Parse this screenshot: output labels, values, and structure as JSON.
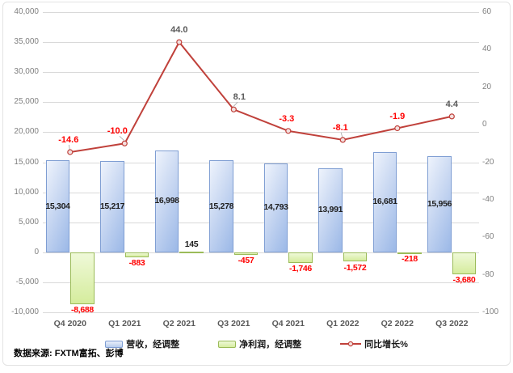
{
  "chart_data": {
    "type": "combo",
    "categories": [
      "Q4 2020",
      "Q1 2021",
      "Q2 2021",
      "Q3 2021",
      "Q4 2021",
      "Q1 2022",
      "Q2 2022",
      "Q3 2022"
    ],
    "series": [
      {
        "name": "营收，经调整",
        "type": "bar",
        "axis": "left",
        "values": [
          15304,
          15217,
          16998,
          15278,
          14793,
          13991,
          16681,
          15956
        ],
        "labels": [
          "15,304",
          "15,217",
          "16,998",
          "15,278",
          "14,793",
          "13,991",
          "16,681",
          "15,956"
        ]
      },
      {
        "name": "净利润，经调整",
        "type": "bar",
        "axis": "left",
        "values": [
          -8688,
          -883,
          145,
          -457,
          -1746,
          -1572,
          -218,
          -3680
        ],
        "labels": [
          "-8,688",
          "-883",
          "145",
          "-457",
          "-1,746",
          "-1,572",
          "-218",
          "-3,680"
        ]
      },
      {
        "name": "同比增长%",
        "type": "line",
        "axis": "right",
        "values": [
          -14.6,
          -10.0,
          44.0,
          8.1,
          -3.3,
          -8.1,
          -1.9,
          4.4
        ],
        "labels": [
          "-14.6",
          "-10.0",
          "44.0",
          "8.1",
          "-3.3",
          "-8.1",
          "-1.9",
          "4.4"
        ],
        "label_dx": [
          -2,
          -9,
          0,
          7,
          -2,
          -3,
          0,
          0
        ],
        "leader_points": [
          0,
          1,
          3,
          5
        ]
      }
    ],
    "left_axis": {
      "min": -10000,
      "max": 40000,
      "step": 5000,
      "tick_labels": [
        "40,000",
        "35,000",
        "30,000",
        "25,000",
        "20,000",
        "15,000",
        "10,000",
        "5,000",
        "0",
        "-5,000",
        "-10,000"
      ]
    },
    "right_axis": {
      "min": -100,
      "max": 60,
      "step": 20,
      "tick_labels": [
        "60",
        "40",
        "20",
        "0",
        "-20",
        "-40",
        "-60",
        "-80",
        "-100"
      ]
    },
    "grid": true,
    "legend_position": "bottom",
    "title": "",
    "xlabel": "",
    "ylabel": ""
  },
  "legend": {
    "items": [
      {
        "label": "营收，经调整",
        "swatch": "bar-blue"
      },
      {
        "label": "净利润，经调整",
        "swatch": "bar-green"
      },
      {
        "label": "同比增长%",
        "swatch": "line-red"
      }
    ]
  },
  "source_note": "数据来源: FXTM富拓、彭博",
  "colors": {
    "line": "#c0413b",
    "marker_fill": "#f3e0df",
    "negative_label": "#ff0000",
    "positive_line_label": "#595959",
    "bar_label": "#1f1f1f",
    "gridline": "#d9d9d9",
    "axis_text": "#808080",
    "x_axis_text": "#595959",
    "frame_border": "#e3e3e3",
    "leader_line": "#a6a6a6"
  }
}
